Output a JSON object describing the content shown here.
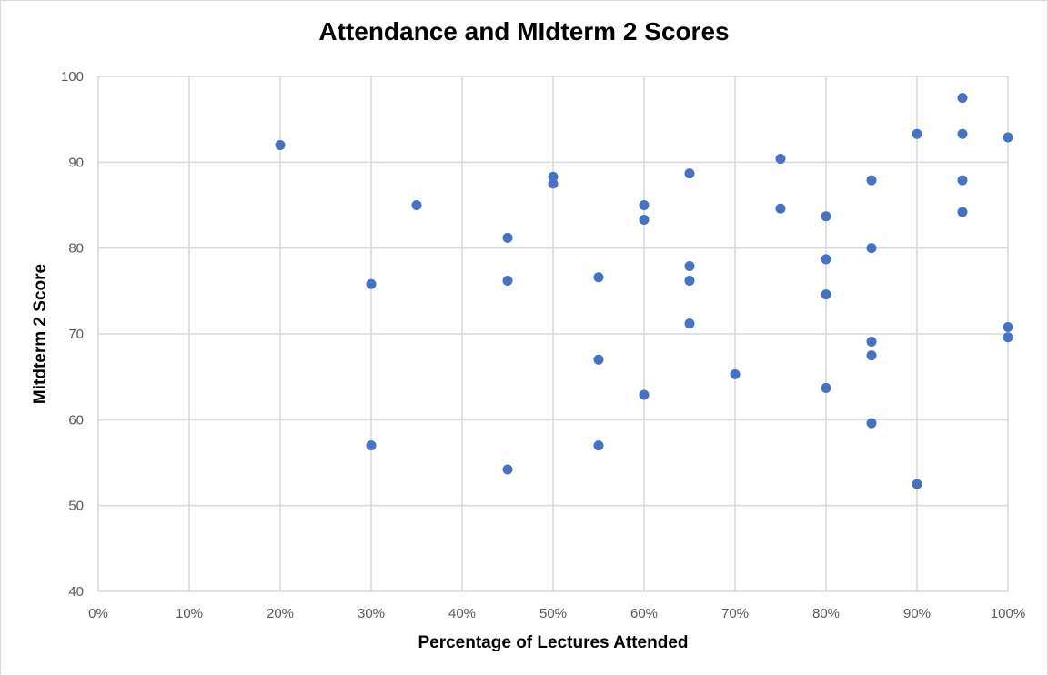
{
  "chart_data": {
    "type": "scatter",
    "title": "Attendance and MIdterm 2 Scores",
    "xlabel": "Percentage of Lectures Attended",
    "ylabel": "Mitdterm 2 Score",
    "xlim": [
      0,
      100
    ],
    "ylim": [
      40,
      100
    ],
    "x_ticks": [
      "0%",
      "10%",
      "20%",
      "30%",
      "40%",
      "50%",
      "60%",
      "70%",
      "80%",
      "90%",
      "100%"
    ],
    "y_ticks": [
      "40",
      "50",
      "60",
      "70",
      "80",
      "90",
      "100"
    ],
    "grid": true,
    "marker_color": "#4472C4",
    "points": [
      {
        "x": 20,
        "y": 92
      },
      {
        "x": 30,
        "y": 75.8
      },
      {
        "x": 30,
        "y": 57
      },
      {
        "x": 35,
        "y": 85
      },
      {
        "x": 45,
        "y": 81.2
      },
      {
        "x": 45,
        "y": 76.2
      },
      {
        "x": 45,
        "y": 54.2
      },
      {
        "x": 50,
        "y": 88.3
      },
      {
        "x": 50,
        "y": 87.5
      },
      {
        "x": 55,
        "y": 76.6
      },
      {
        "x": 55,
        "y": 67
      },
      {
        "x": 55,
        "y": 57
      },
      {
        "x": 60,
        "y": 85
      },
      {
        "x": 60,
        "y": 83.3
      },
      {
        "x": 60,
        "y": 62.9
      },
      {
        "x": 65,
        "y": 88.7
      },
      {
        "x": 65,
        "y": 77.9
      },
      {
        "x": 65,
        "y": 76.2
      },
      {
        "x": 65,
        "y": 71.2
      },
      {
        "x": 70,
        "y": 65.3
      },
      {
        "x": 75,
        "y": 90.4
      },
      {
        "x": 75,
        "y": 84.6
      },
      {
        "x": 80,
        "y": 83.7
      },
      {
        "x": 80,
        "y": 78.7
      },
      {
        "x": 80,
        "y": 74.6
      },
      {
        "x": 80,
        "y": 63.7
      },
      {
        "x": 85,
        "y": 87.9
      },
      {
        "x": 85,
        "y": 80
      },
      {
        "x": 85,
        "y": 69.1
      },
      {
        "x": 85,
        "y": 67.5
      },
      {
        "x": 85,
        "y": 59.6
      },
      {
        "x": 90,
        "y": 93.3
      },
      {
        "x": 90,
        "y": 52.5
      },
      {
        "x": 95,
        "y": 97.5
      },
      {
        "x": 95,
        "y": 93.3
      },
      {
        "x": 95,
        "y": 87.9
      },
      {
        "x": 95,
        "y": 84.2
      },
      {
        "x": 100,
        "y": 92.9
      },
      {
        "x": 100,
        "y": 70.8
      },
      {
        "x": 100,
        "y": 69.6
      }
    ]
  }
}
